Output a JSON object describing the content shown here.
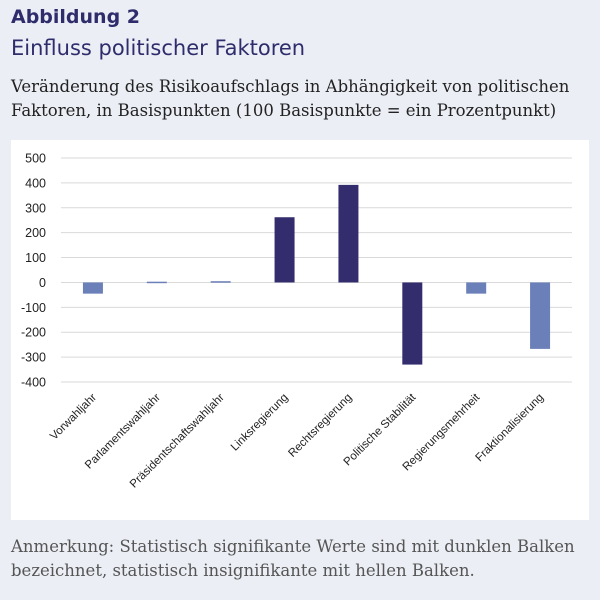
{
  "figure": {
    "label": "Abbildung 2",
    "title": "Einfluss politischer Faktoren",
    "subtitle": "Veränderung des Risikoaufschlags in Abhängigkeit von politischen Faktoren, in Basispunkten (100 Basispunkte = ein Prozentpunkt)",
    "note": "Anmerkung: Statistisch signifikante Werte sind mit dunklen Balken bezeichnet, statistisch insignifikante mit hellen Balken."
  },
  "colors": {
    "significant": "#332d6e",
    "insignificant": "#6b80b9",
    "grid": "#d9d9d9",
    "axis_text": "#222222"
  },
  "chart_data": {
    "type": "bar",
    "categories": [
      "Vorwahljahr",
      "Parlamentswahljahr",
      "Präsidentschaftswahljahr",
      "Linksregierung",
      "Rechtsregierung",
      "Politische Stabilität",
      "Regierungsmehrheit",
      "Fraktionalisierung"
    ],
    "values": [
      -45,
      3,
      5,
      262,
      392,
      -330,
      -45,
      -267
    ],
    "significant": [
      false,
      false,
      false,
      true,
      true,
      true,
      false,
      false
    ],
    "ylim": [
      -400,
      500
    ],
    "yticks": [
      -400,
      -300,
      -200,
      -100,
      0,
      100,
      200,
      300,
      400,
      500
    ],
    "ytick_labels": [
      "-400",
      "-300",
      "-200",
      "-100",
      "0",
      "100",
      "200",
      "300",
      "400",
      "500"
    ],
    "grid": true,
    "xlabel": "",
    "ylabel": ""
  }
}
